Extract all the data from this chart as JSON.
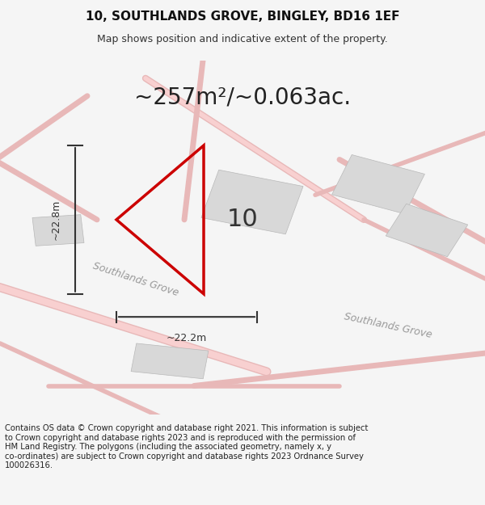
{
  "title_line1": "10, SOUTHLANDS GROVE, BINGLEY, BD16 1EF",
  "title_line2": "Map shows position and indicative extent of the property.",
  "area_text": "~257m²/~0.063ac.",
  "label_vertical": "~22.8m",
  "label_horizontal": "~22.2m",
  "property_number": "10",
  "road_label1": "Southlands Grove",
  "road_label2": "Southlands Grove",
  "footer_text": "Contains OS data © Crown copyright and database right 2021. This information is subject\nto Crown copyright and database rights 2023 and is reproduced with the permission of\nHM Land Registry. The polygons (including the associated geometry, namely x, y\nco-ordinates) are subject to Crown copyright and database rights 2023 Ordnance Survey\n100026316.",
  "bg_color": "#f5f5f5",
  "map_bg_color": "#f0f0f0",
  "road_color": "#e8b8b8",
  "building_color": "#d8d8d8",
  "property_outline_color": "#cc0000",
  "dim_line_color": "#333333",
  "text_color": "#333333",
  "footer_bg": "#ffffff",
  "road_line_color": "#c8a0a0"
}
